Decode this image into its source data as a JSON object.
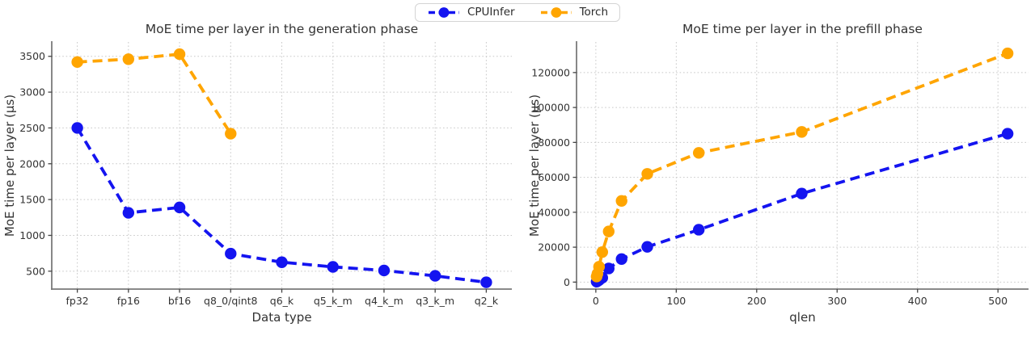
{
  "figure": {
    "background": "#ffffff",
    "grid_color": "#c8c8c8",
    "spine_color": "#7a7a7a",
    "text_color": "#333333"
  },
  "legend": {
    "position": "top-center",
    "items": [
      {
        "label": "CPUInfer",
        "color": "#1414f0",
        "marker": "circle-on-dashed-line"
      },
      {
        "label": "Torch",
        "color": "#ffa500",
        "marker": "circle-on-dashed-line"
      }
    ]
  },
  "chart_data": [
    {
      "name": "generation-phase",
      "type": "line",
      "title": "MoE time per layer in the generation phase",
      "xlabel": "Data type",
      "ylabel": "MoE time per layer (µs)",
      "grid": true,
      "line_style": "dashed",
      "legend_ref": "figure-top-legend",
      "categories": [
        "fp32",
        "fp16",
        "bf16",
        "q8_0/qint8",
        "q6_k",
        "q5_k_m",
        "q4_k_m",
        "q3_k_m",
        "q2_k"
      ],
      "series": [
        {
          "name": "CPUInfer",
          "color": "#1414f0",
          "values": [
            2500,
            1315,
            1390,
            745,
            625,
            560,
            510,
            435,
            345
          ]
        },
        {
          "name": "Torch",
          "color": "#ffa500",
          "values": [
            3420,
            3460,
            3530,
            2420,
            null,
            null,
            null,
            null,
            null
          ]
        }
      ],
      "ylim": [
        250,
        3700
      ],
      "yticks": [
        500,
        1000,
        1500,
        2000,
        2500,
        3000,
        3500
      ]
    },
    {
      "name": "prefill-phase",
      "type": "line",
      "title": "MoE time per layer in the prefill phase",
      "xlabel": "qlen",
      "ylabel": "MoE time per layer (µs)",
      "grid": true,
      "line_style": "dashed",
      "legend_ref": "figure-top-legend",
      "x": [
        1,
        2,
        4,
        8,
        16,
        32,
        64,
        128,
        256,
        512
      ],
      "series": [
        {
          "name": "CPUInfer",
          "color": "#1414f0",
          "values": [
            250,
            550,
            1100,
            2500,
            7800,
            13200,
            20200,
            30000,
            50700,
            85000
          ]
        },
        {
          "name": "Torch",
          "color": "#ffa500",
          "values": [
            3200,
            4800,
            8800,
            17200,
            29000,
            46500,
            62000,
            74000,
            86000,
            131000
          ]
        }
      ],
      "xlim": [
        -24,
        538
      ],
      "xticks": [
        0,
        100,
        200,
        300,
        400,
        500
      ],
      "ylim": [
        -4000,
        137500
      ],
      "yticks": [
        0,
        20000,
        40000,
        60000,
        80000,
        100000,
        120000
      ]
    }
  ]
}
